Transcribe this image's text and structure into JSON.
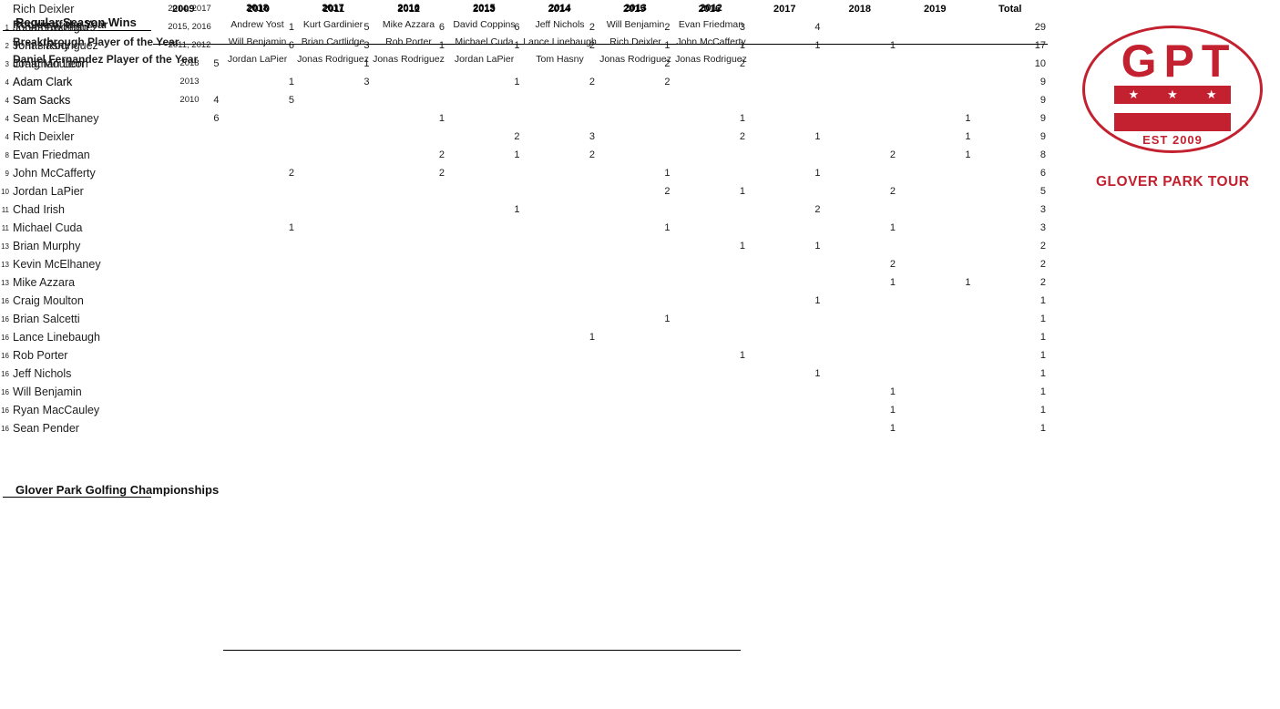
{
  "wins": {
    "title": "Regular Season Wins",
    "year_columns": [
      "2009",
      "2010",
      "2011",
      "2012",
      "2013",
      "2014",
      "2015",
      "2016",
      "2017",
      "2018",
      "2019"
    ],
    "total_label": "Total",
    "rows": [
      {
        "rank": "1",
        "name": "Jonas Rodriguez",
        "values": [
          "",
          "1",
          "5",
          "6",
          "6",
          "2",
          "2",
          "3",
          "4",
          "",
          ""
        ],
        "total": "29"
      },
      {
        "rank": "2",
        "name": "Tom Hasny",
        "values": [
          "",
          "6",
          "3",
          "1",
          "1",
          "2",
          "1",
          "1",
          "1",
          "1",
          ""
        ],
        "total": "17"
      },
      {
        "rank": "3",
        "name": "Jonathan Leon",
        "values": [
          "5",
          "",
          "1",
          "",
          "",
          "",
          "2",
          "2",
          "",
          "",
          ""
        ],
        "total": "10"
      },
      {
        "rank": "4",
        "name": "Adam Clark",
        "values": [
          "",
          "1",
          "3",
          "",
          "1",
          "2",
          "2",
          "",
          "",
          "",
          ""
        ],
        "total": "9"
      },
      {
        "rank": "4",
        "name": "Sam Sacks",
        "values": [
          "4",
          "5",
          "",
          "",
          "",
          "",
          "",
          "",
          "",
          "",
          ""
        ],
        "total": "9"
      },
      {
        "rank": "4",
        "name": "Sean McElhaney",
        "values": [
          "6",
          "",
          "",
          "1",
          "",
          "",
          "",
          "1",
          "",
          "",
          "1"
        ],
        "total": "9"
      },
      {
        "rank": "4",
        "name": "Rich Deixler",
        "values": [
          "",
          "",
          "",
          "",
          "2",
          "3",
          "",
          "2",
          "1",
          "",
          "1"
        ],
        "total": "9"
      },
      {
        "rank": "8",
        "name": "Evan Friedman",
        "values": [
          "",
          "",
          "",
          "2",
          "1",
          "2",
          "",
          "",
          "",
          "2",
          "1"
        ],
        "total": "8"
      },
      {
        "rank": "9",
        "name": "John McCafferty",
        "values": [
          "",
          "2",
          "",
          "2",
          "",
          "",
          "1",
          "",
          "1",
          "",
          ""
        ],
        "total": "6"
      },
      {
        "rank": "10",
        "name": "Jordan LaPier",
        "values": [
          "",
          "",
          "",
          "",
          "",
          "",
          "2",
          "1",
          "",
          "2",
          ""
        ],
        "total": "5"
      },
      {
        "rank": "11",
        "name": "Chad Irish",
        "values": [
          "",
          "",
          "",
          "",
          "1",
          "",
          "",
          "",
          "2",
          "",
          ""
        ],
        "total": "3"
      },
      {
        "rank": "11",
        "name": "Michael Cuda",
        "values": [
          "",
          "1",
          "",
          "",
          "",
          "",
          "1",
          "",
          "",
          "1",
          ""
        ],
        "total": "3"
      },
      {
        "rank": "13",
        "name": "Brian Murphy",
        "values": [
          "",
          "",
          "",
          "",
          "",
          "",
          "",
          "1",
          "1",
          "",
          ""
        ],
        "total": "2"
      },
      {
        "rank": "13",
        "name": "Kevin McElhaney",
        "values": [
          "",
          "",
          "",
          "",
          "",
          "",
          "",
          "",
          "",
          "2",
          ""
        ],
        "total": "2"
      },
      {
        "rank": "13",
        "name": "Mike Azzara",
        "values": [
          "",
          "",
          "",
          "",
          "",
          "",
          "",
          "",
          "",
          "1",
          "1"
        ],
        "total": "2"
      },
      {
        "rank": "16",
        "name": "Craig Moulton",
        "values": [
          "",
          "",
          "",
          "",
          "",
          "",
          "",
          "",
          "1",
          "",
          ""
        ],
        "total": "1"
      },
      {
        "rank": "16",
        "name": "Brian Salcetti",
        "values": [
          "",
          "",
          "",
          "",
          "",
          "",
          "1",
          "",
          "",
          "",
          ""
        ],
        "total": "1"
      },
      {
        "rank": "16",
        "name": "Lance Linebaugh",
        "values": [
          "",
          "",
          "",
          "",
          "",
          "1",
          "",
          "",
          "",
          "",
          ""
        ],
        "total": "1"
      },
      {
        "rank": "16",
        "name": "Rob Porter",
        "values": [
          "",
          "",
          "",
          "",
          "",
          "",
          "",
          "1",
          "",
          "",
          ""
        ],
        "total": "1"
      },
      {
        "rank": "16",
        "name": "Jeff Nichols",
        "values": [
          "",
          "",
          "",
          "",
          "",
          "",
          "",
          "",
          "1",
          "",
          ""
        ],
        "total": "1"
      },
      {
        "rank": "16",
        "name": "Will Benjamin",
        "values": [
          "",
          "",
          "",
          "",
          "",
          "",
          "",
          "",
          "",
          "1",
          ""
        ],
        "total": "1"
      },
      {
        "rank": "16",
        "name": "Ryan MacCauley",
        "values": [
          "",
          "",
          "",
          "",
          "",
          "",
          "",
          "",
          "",
          "1",
          ""
        ],
        "total": "1"
      },
      {
        "rank": "16",
        "name": "Sean Pender",
        "values": [
          "",
          "",
          "",
          "",
          "",
          "",
          "",
          "",
          "",
          "1",
          ""
        ],
        "total": "1"
      }
    ]
  },
  "championships": {
    "title": "Glover Park Golfing Championships",
    "entries": [
      {
        "name": "Rich Deixler",
        "years": "2014, 2017"
      },
      {
        "name": "Jonathan Leon",
        "years": "2015, 2016"
      },
      {
        "name": "Jonas Rodriguez",
        "years": "2011, 2012"
      },
      {
        "name": "Craig Moulton",
        "years": "2018"
      },
      {
        "name": "Adam Clark",
        "years": "2013"
      },
      {
        "name": "Sam Sacks",
        "years": "2010"
      }
    ]
  },
  "awards": {
    "years": [
      "2018",
      "2017",
      "2016",
      "2015",
      "2014",
      "2013",
      "2012"
    ],
    "categories": [
      {
        "label": "Rookie of the Year",
        "winners": [
          "Andrew Yost",
          "Kurt Gardinier",
          "Mike Azzara",
          "David Coppins",
          "Jeff Nichols",
          "Will Benjamin",
          "Evan Friedman"
        ]
      },
      {
        "label": "Breakthrough Player of the Year",
        "winners": [
          "Will Benjamin",
          "Brian Cartlidge",
          "Rob Porter",
          "Michael Cuda",
          "Lance Linebaugh",
          "Rich Deixler",
          "John McCafferty"
        ]
      },
      {
        "label": "Daniel Fernandez Player of the Year",
        "winners": [
          "Jordan LaPier",
          "Jonas Rodriguez",
          "Jonas Rodriguez",
          "Jordan LaPier",
          "Tom Hasny",
          "Jonas Rodriguez",
          "Jonas Rodriguez"
        ]
      }
    ]
  },
  "logo": {
    "acronym": "GPT",
    "est": "EST 2009",
    "tour_name": "GLOVER PARK TOUR",
    "star": "★",
    "red": "#C3212F"
  }
}
